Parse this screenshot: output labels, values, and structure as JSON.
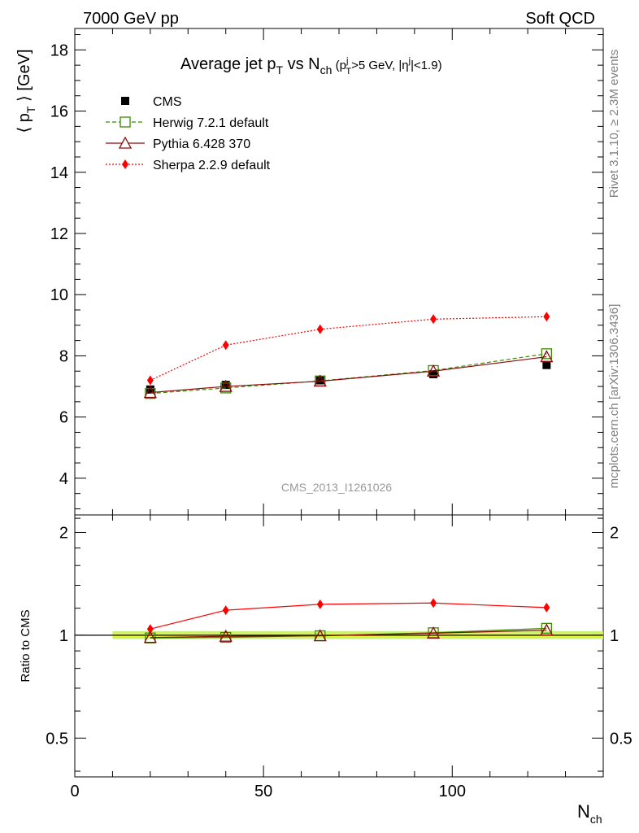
{
  "header": {
    "left": "7000 GeV pp",
    "right": "Soft QCD"
  },
  "side_labels": {
    "rivet": "Rivet 3.1.10, ≥ 2.3M events",
    "mcplots": "mcplots.cern.ch [arXiv:1306.3436]"
  },
  "watermark": "CMS_2013_I1261026",
  "colors": {
    "cms": "#000000",
    "herwig": "#3a8a00",
    "pythia": "#8b0a0a",
    "sherpa": "#ff0000",
    "band_inner": "#ffff00",
    "band_outer": "#c8f07a"
  },
  "chart_data": [
    {
      "type": "line",
      "panel": "main",
      "title_parts": {
        "main": "Average jet p",
        "sub1": "T",
        "vs": " vs N",
        "sub2": "ch",
        "cut_open": " (p",
        "cut_sup1": "j",
        "cut_sub1": "T",
        "cut_mid": ">5 GeV, |η",
        "cut_sup2": "j",
        "cut_close": "|<1.9)"
      },
      "ylabel_parts": {
        "open": "⟨ p",
        "sub": "T",
        "close": " ⟩ [GeV]"
      },
      "xlim": [
        0,
        140
      ],
      "ylim": [
        2.8,
        18.7
      ],
      "yticks": [
        4,
        6,
        8,
        10,
        12,
        14,
        16,
        18
      ],
      "x": [
        20,
        40,
        65,
        95,
        125
      ],
      "series": [
        {
          "name": "CMS",
          "key": "cms",
          "marker": "square-filled",
          "values": [
            6.9,
            7.05,
            7.2,
            7.4,
            7.7
          ]
        },
        {
          "name": "Herwig 7.2.1 default",
          "key": "herwig",
          "marker": "square-open",
          "dash": "5,3",
          "values": [
            6.77,
            6.95,
            7.18,
            7.52,
            8.07
          ]
        },
        {
          "name": "Pythia 6.428 370",
          "key": "pythia",
          "marker": "triangle-open",
          "values": [
            6.8,
            7.0,
            7.17,
            7.5,
            7.97
          ]
        },
        {
          "name": "Sherpa 2.2.9 default",
          "key": "sherpa",
          "marker": "diamond-filled",
          "dash": "2,2",
          "values": [
            7.2,
            8.35,
            8.87,
            9.2,
            9.28
          ]
        }
      ]
    },
    {
      "type": "line",
      "panel": "ratio",
      "ylabel": "Ratio to CMS",
      "xlabel_parts": {
        "main": "N",
        "sub": "ch"
      },
      "xlim": [
        0,
        140
      ],
      "xticks": [
        0,
        50,
        100
      ],
      "xtick_labels": [
        "0",
        "50",
        "100"
      ],
      "ylim": [
        0.385,
        2.25
      ],
      "log_y": true,
      "yticks": [
        0.5,
        1,
        2
      ],
      "ytick_labels": [
        "0.5",
        "1",
        "2"
      ],
      "x": [
        20,
        40,
        65,
        95,
        125
      ],
      "series": [
        {
          "name": "Herwig 7.2.1 default",
          "key": "herwig",
          "values": [
            0.982,
            0.986,
            0.997,
            1.017,
            1.048
          ]
        },
        {
          "name": "Pythia 6.428 370",
          "key": "pythia",
          "values": [
            0.985,
            0.993,
            0.996,
            1.014,
            1.035
          ]
        },
        {
          "name": "Sherpa 2.2.9 default",
          "key": "sherpa",
          "values": [
            1.043,
            1.184,
            1.232,
            1.243,
            1.205
          ]
        }
      ],
      "band_range": [
        10,
        140
      ]
    }
  ]
}
